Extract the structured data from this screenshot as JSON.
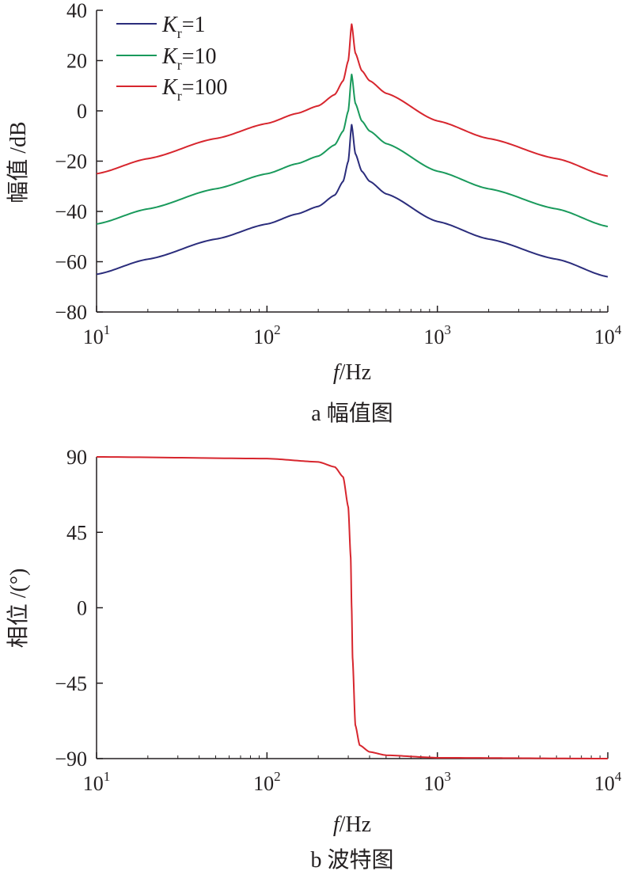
{
  "colors": {
    "Kr=1": "#2b2d7c",
    "Kr=10": "#1a9a5c",
    "Kr=100": "#d7262e",
    "axis": "#231f20"
  },
  "chart_data": [
    {
      "type": "line",
      "xscale": "log",
      "xlim": [
        10,
        10000
      ],
      "ylim": [
        -80,
        40
      ],
      "xticks": [
        10,
        100,
        1000,
        10000
      ],
      "xtick_base": "10",
      "xtick_exps": [
        "1",
        "2",
        "3",
        "4"
      ],
      "yticks": [
        40,
        20,
        0,
        -20,
        -40,
        -60,
        -80
      ],
      "ytick_labels": [
        "40",
        "20",
        "0",
        "−20",
        "−40",
        "−60",
        "−80"
      ],
      "ylabel": "幅值 /dB",
      "xlabel_var": "f",
      "xlabel_unit": "/Hz",
      "caption": "a  幅值图",
      "legend_position": "top-left",
      "legend": [
        {
          "k": "K",
          "sub": "r",
          "value": "=1"
        },
        {
          "k": "K",
          "sub": "r",
          "value": "=10"
        },
        {
          "k": "K",
          "sub": "r",
          "value": "=100"
        }
      ],
      "resonance_hz": 314,
      "series": [
        {
          "name": "Kr=1",
          "color_key": "Kr=1",
          "peak_db": -5.5,
          "x": [
            10,
            20,
            50,
            100,
            150,
            200,
            250,
            280,
            300,
            314,
            330,
            360,
            400,
            500,
            1000,
            2000,
            5000,
            10000
          ],
          "y": [
            -65,
            -59,
            -51,
            -45,
            -41,
            -38,
            -33.5,
            -28,
            -20,
            -5.5,
            -17,
            -24,
            -28,
            -33,
            -44,
            -51,
            -59,
            -66
          ]
        },
        {
          "name": "Kr=10",
          "color_key": "Kr=10",
          "peak_db": 14.5,
          "x": [
            10,
            20,
            50,
            100,
            150,
            200,
            250,
            280,
            300,
            314,
            330,
            360,
            400,
            500,
            1000,
            2000,
            5000,
            10000
          ],
          "y": [
            -45,
            -39,
            -31,
            -25,
            -21,
            -18,
            -13.5,
            -8,
            0,
            14.5,
            3,
            -4,
            -8,
            -13,
            -24,
            -31,
            -39,
            -46
          ]
        },
        {
          "name": "Kr=100",
          "color_key": "Kr=100",
          "peak_db": 34.5,
          "x": [
            10,
            20,
            50,
            100,
            150,
            200,
            250,
            280,
            300,
            314,
            330,
            360,
            400,
            500,
            1000,
            2000,
            5000,
            10000
          ],
          "y": [
            -25,
            -19,
            -11,
            -5,
            -1,
            2,
            6.5,
            12,
            20,
            34.5,
            23,
            16,
            12,
            7,
            -4,
            -11,
            -19,
            -26
          ]
        }
      ]
    },
    {
      "type": "line",
      "xscale": "log",
      "xlim": [
        10,
        10000
      ],
      "ylim": [
        -90,
        90
      ],
      "xticks": [
        10,
        100,
        1000,
        10000
      ],
      "xtick_base": "10",
      "xtick_exps": [
        "1",
        "2",
        "3",
        "4"
      ],
      "yticks": [
        90,
        45,
        0,
        -45,
        -90
      ],
      "ytick_labels": [
        "90",
        "45",
        "0",
        "−45",
        "−90"
      ],
      "ylabel": "相位 /(°)",
      "xlabel_var": "f",
      "xlabel_unit": "/Hz",
      "caption": "b  波特图",
      "series": [
        {
          "color_key": "Kr=100",
          "x": [
            10,
            100,
            200,
            250,
            280,
            300,
            310,
            314,
            318,
            330,
            350,
            400,
            500,
            1000,
            10000
          ],
          "y": [
            90,
            89,
            87,
            84,
            78,
            60,
            30,
            0,
            -30,
            -70,
            -82,
            -86,
            -88,
            -89.5,
            -90
          ]
        }
      ]
    }
  ]
}
